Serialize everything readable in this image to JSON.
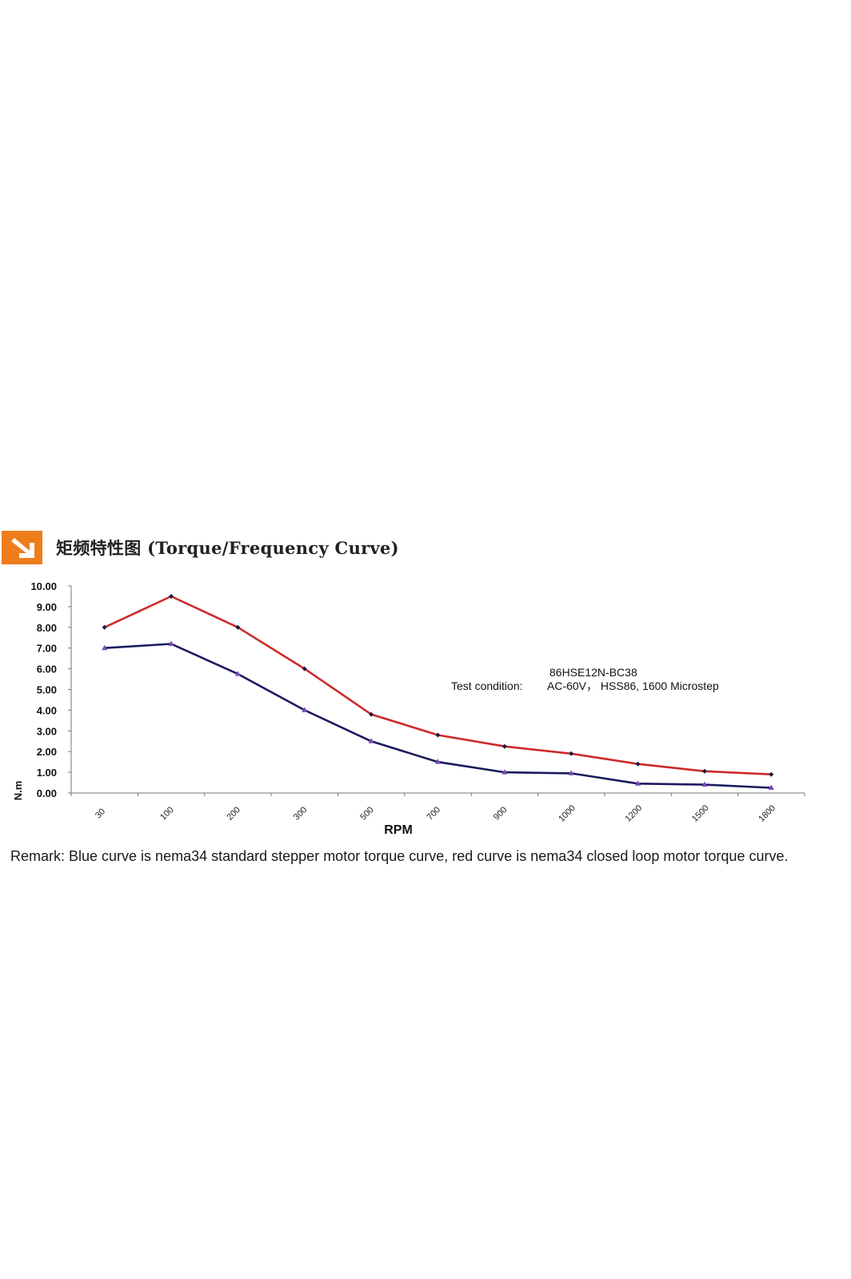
{
  "header": {
    "icon": "arrow-down-right-icon",
    "accent_color": "#ee7d1c",
    "title": "矩频特性图 (Torque/Frequency Curve)"
  },
  "chart_data": {
    "type": "line",
    "categories": [
      "30",
      "100",
      "200",
      "300",
      "500",
      "700",
      "900",
      "1000",
      "1200",
      "1500",
      "1800"
    ],
    "series": [
      {
        "color": "#cc2a2a",
        "marker": "diamond",
        "values": [
          8.0,
          9.5,
          8.0,
          6.0,
          3.8,
          2.8,
          2.25,
          1.9,
          1.4,
          1.05,
          0.9
        ]
      },
      {
        "color": "#1a1a5e",
        "marker": "triangle",
        "values": [
          7.0,
          7.2,
          5.75,
          4.0,
          2.5,
          1.5,
          1.0,
          0.95,
          0.45,
          0.4,
          0.25
        ]
      }
    ],
    "y_ticks": [
      "0.00",
      "1.00",
      "2.00",
      "3.00",
      "4.00",
      "5.00",
      "6.00",
      "7.00",
      "8.00",
      "9.00",
      "10.00"
    ],
    "ylim": [
      0,
      10
    ],
    "xlabel": "RPM",
    "ylabel": "N.m",
    "grid": false,
    "annotation": {
      "model": "86HSE12N-BC38",
      "label": "Test condition:",
      "value": "AC-60V， HSS86, 1600 Microstep"
    }
  },
  "remark": "Remark: Blue curve is nema34 standard stepper motor torque curve, red curve is nema34 closed loop motor torque curve."
}
